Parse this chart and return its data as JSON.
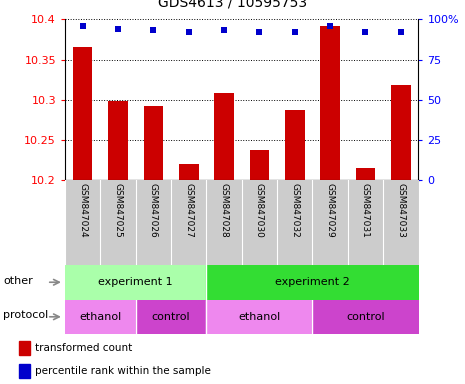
{
  "title": "GDS4613 / 10595753",
  "categories": [
    "GSM847024",
    "GSM847025",
    "GSM847026",
    "GSM847027",
    "GSM847028",
    "GSM847030",
    "GSM847032",
    "GSM847029",
    "GSM847031",
    "GSM847033"
  ],
  "bar_values": [
    10.365,
    10.298,
    10.292,
    10.22,
    10.308,
    10.238,
    10.287,
    10.392,
    10.215,
    10.318
  ],
  "percentile_values": [
    96,
    94,
    93,
    92,
    93,
    92,
    92,
    96,
    92,
    92
  ],
  "ylim_left": [
    10.2,
    10.4
  ],
  "ylim_right": [
    0,
    100
  ],
  "yticks_left": [
    10.2,
    10.25,
    10.3,
    10.35,
    10.4
  ],
  "yticks_right": [
    0,
    25,
    50,
    75,
    100
  ],
  "bar_color": "#cc0000",
  "dot_color": "#0000cc",
  "experiment1_color": "#aaffaa",
  "experiment2_color": "#33dd33",
  "ethanol_color": "#ee88ee",
  "control_color": "#cc44cc",
  "tick_label_area_color": "#cccccc",
  "other_label": "other",
  "protocol_label": "protocol",
  "experiment1_label": "experiment 1",
  "experiment2_label": "experiment 2",
  "ethanol_label": "ethanol",
  "control_label": "control",
  "legend_bar_label": "transformed count",
  "legend_dot_label": "percentile rank within the sample"
}
